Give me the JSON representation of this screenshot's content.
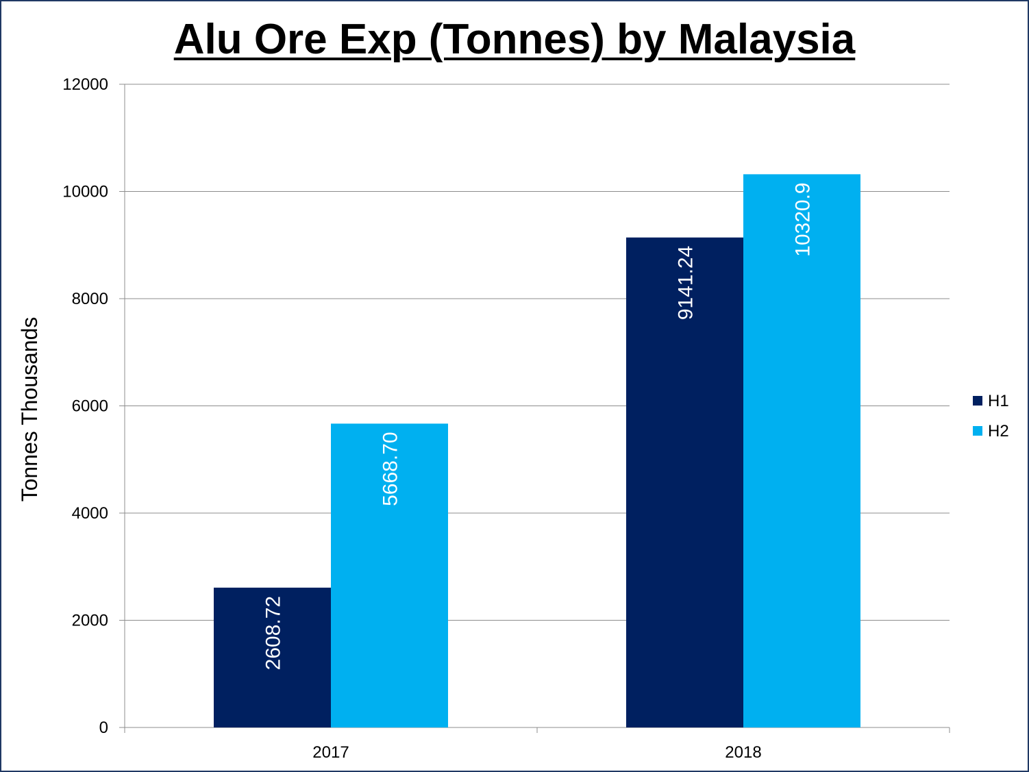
{
  "chart_data": {
    "type": "bar",
    "title": "Alu Ore Exp (Tonnes) by Malaysia",
    "xlabel": "",
    "ylabel": "Tonnes Thousands",
    "categories": [
      "2017",
      "2018"
    ],
    "series": [
      {
        "name": "H1",
        "color": "#002060",
        "values": [
          2608.72,
          9141.24
        ],
        "labels": [
          "2608.72",
          "9141.24"
        ]
      },
      {
        "name": "H2",
        "color": "#00b0f0",
        "values": [
          5668.7,
          10320.9
        ],
        "labels": [
          "5668.70",
          "10320.9"
        ]
      }
    ],
    "ylim": [
      0,
      12000
    ],
    "yticks": [
      "0",
      "2000",
      "4000",
      "6000",
      "8000",
      "10000",
      "12000"
    ],
    "grid": true,
    "legend_position": "right"
  }
}
